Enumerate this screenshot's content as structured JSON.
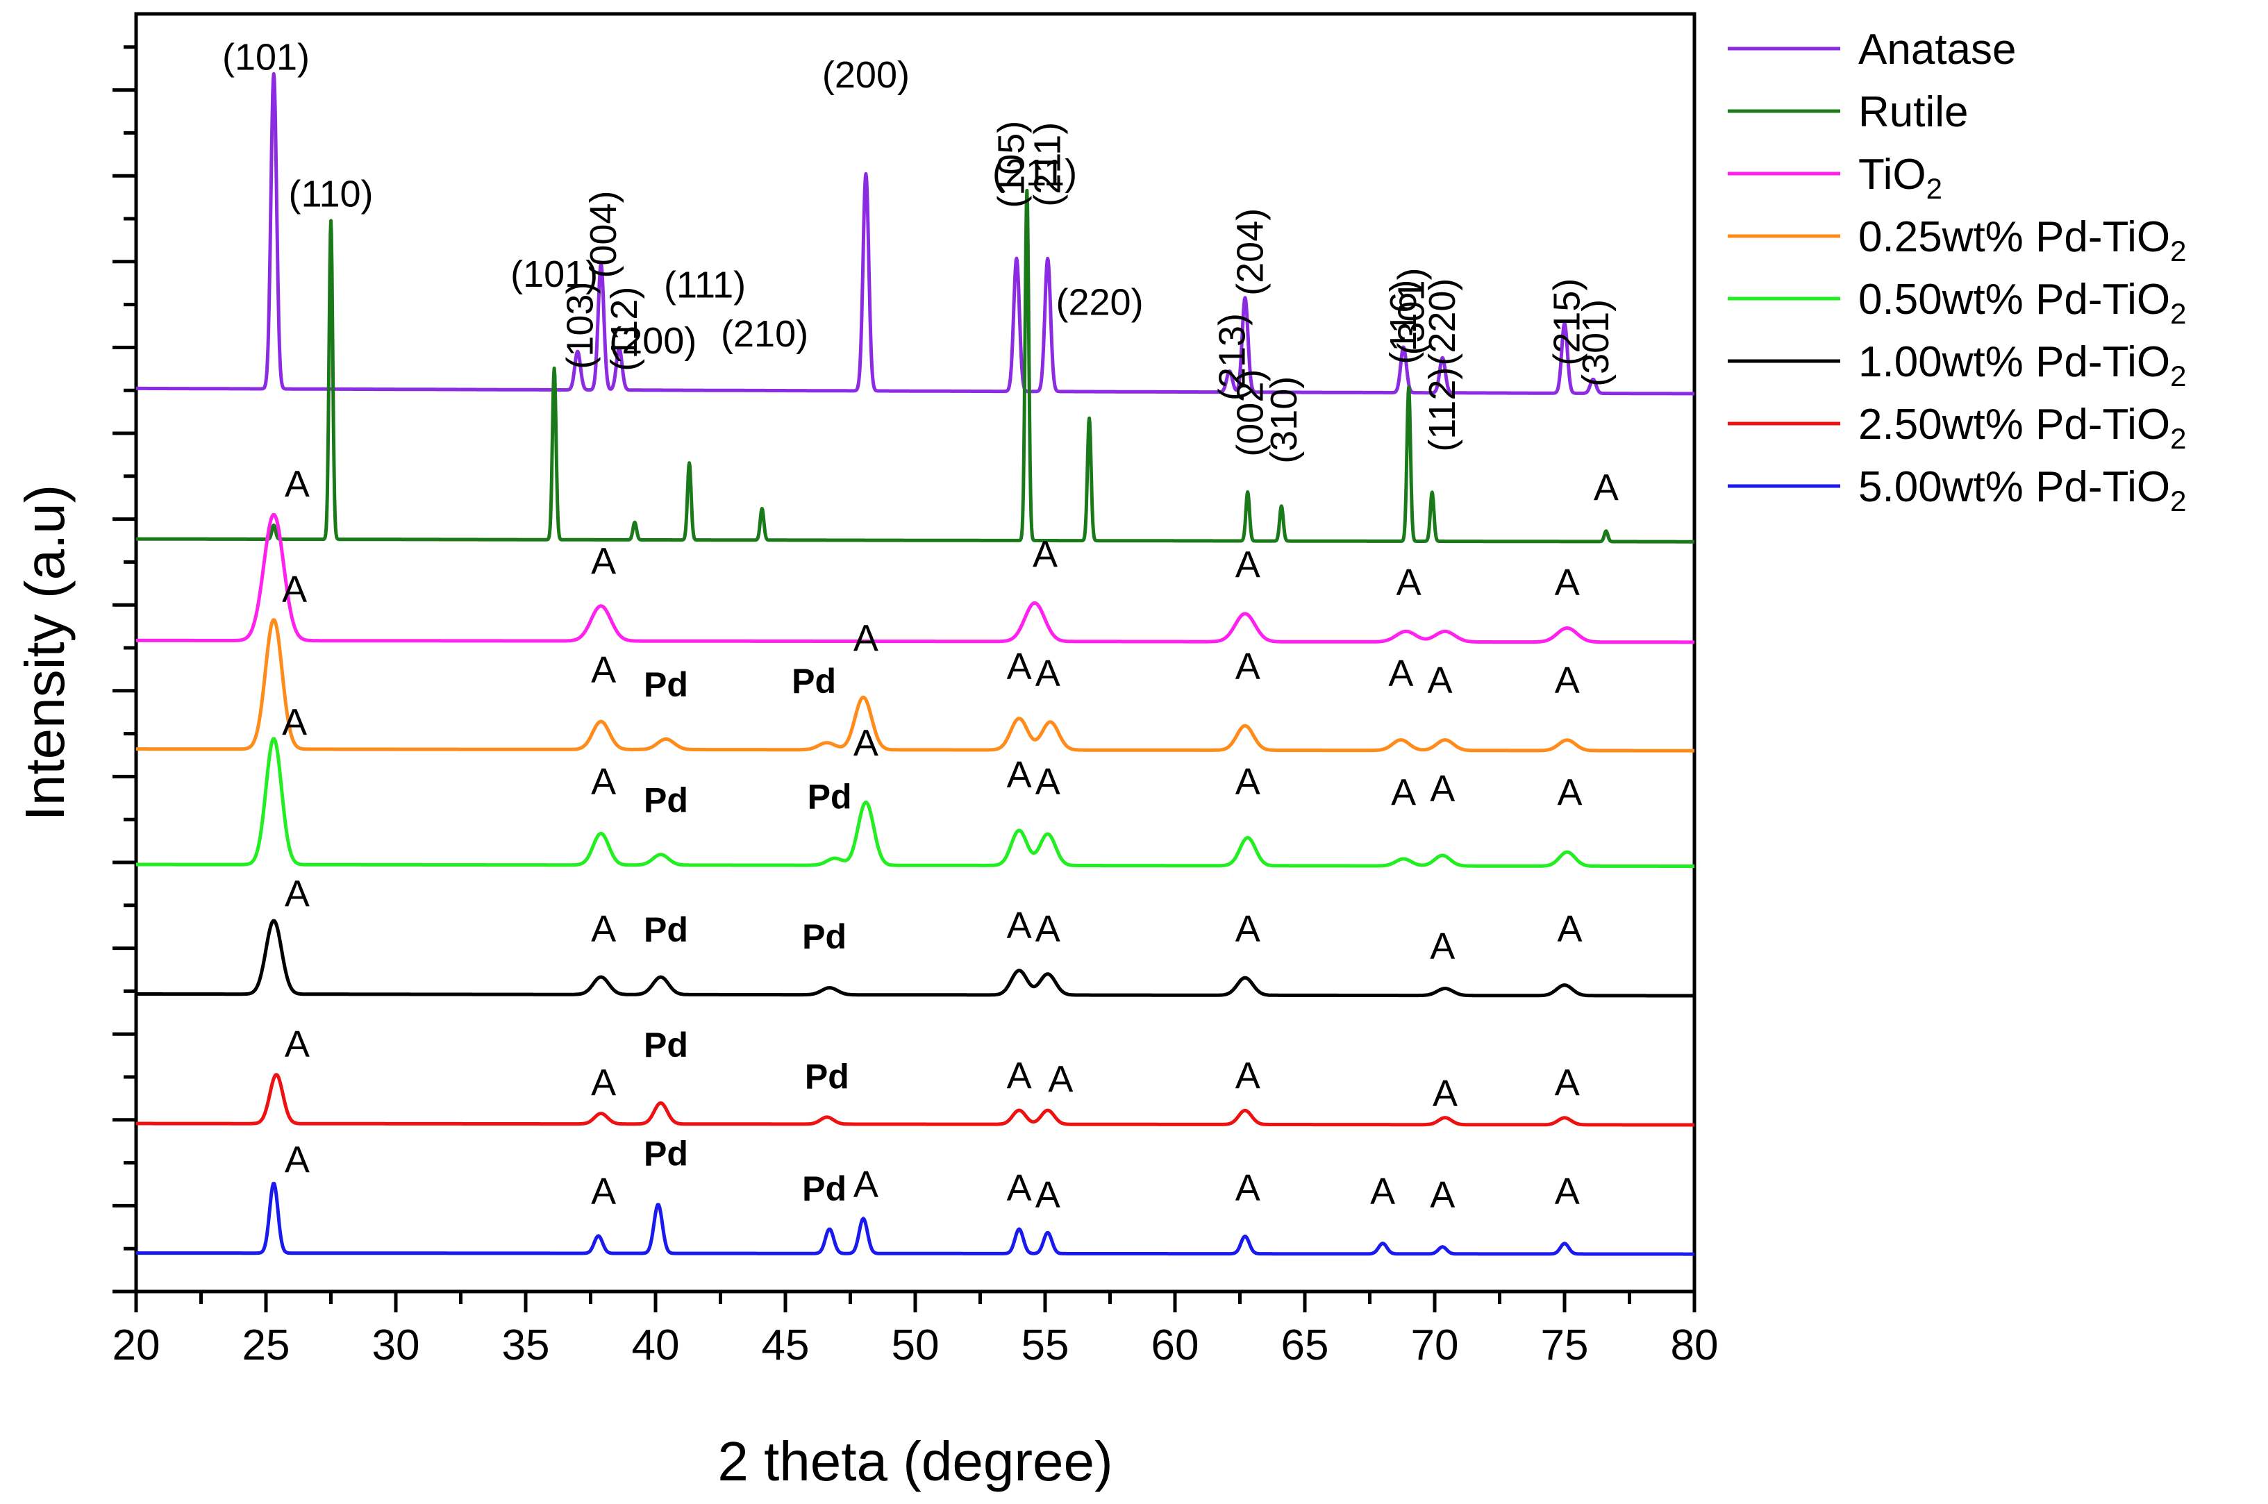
{
  "chart_data": {
    "type": "line",
    "title": "",
    "xlabel": "2 theta (degree)",
    "ylabel": "Intensity (a.u)",
    "xlim": [
      20,
      80
    ],
    "xticks": [
      "20",
      "25",
      "30",
      "35",
      "40",
      "45",
      "50",
      "55",
      "60",
      "65",
      "70",
      "75",
      "80"
    ],
    "series": [
      {
        "name": "Anatase",
        "legend": "Anatase",
        "legend_sub": "",
        "legend_tail": "",
        "color": "#8B2BE2",
        "baseline": 9.3,
        "sigma": 0.11,
        "slope": -0.15,
        "peaks": [
          [
            25.3,
            9.0
          ],
          [
            37.0,
            1.1
          ],
          [
            37.9,
            3.6
          ],
          [
            38.6,
            1.2
          ],
          [
            48.1,
            6.2
          ],
          [
            53.9,
            3.8
          ],
          [
            55.1,
            3.8
          ],
          [
            62.1,
            0.6
          ],
          [
            62.7,
            2.7
          ],
          [
            68.8,
            1.3
          ],
          [
            70.3,
            1.0
          ],
          [
            75.0,
            2.0
          ],
          [
            76.1,
            0.4
          ]
        ],
        "labels": [
          {
            "text": "(101)",
            "x": 25.0,
            "y": 18.4,
            "rot": 0,
            "bold": false
          },
          {
            "text": "(103)",
            "x": 37.1,
            "y": 11.1,
            "rot": -90,
            "bold": false
          },
          {
            "text": "(004)",
            "x": 38.0,
            "y": 13.7,
            "rot": -90,
            "bold": false
          },
          {
            "text": "(112)",
            "x": 38.8,
            "y": 11.0,
            "rot": -90,
            "bold": false
          },
          {
            "text": "(200)",
            "x": 48.1,
            "y": 17.9,
            "rot": 0,
            "bold": false
          },
          {
            "text": "(105)",
            "x": 53.7,
            "y": 15.7,
            "rot": -90,
            "bold": false
          },
          {
            "text": "(211)",
            "x": 55.1,
            "y": 15.7,
            "rot": -90,
            "bold": false
          },
          {
            "text": "(213)",
            "x": 62.2,
            "y": 10.2,
            "rot": -90,
            "bold": false
          },
          {
            "text": "(204)",
            "x": 62.9,
            "y": 13.2,
            "rot": -90,
            "bold": false
          },
          {
            "text": "(116)",
            "x": 68.8,
            "y": 11.2,
            "rot": -90,
            "bold": false
          },
          {
            "text": "(220)",
            "x": 70.3,
            "y": 11.2,
            "rot": -90,
            "bold": false
          },
          {
            "text": "(215)",
            "x": 75.1,
            "y": 11.2,
            "rot": -90,
            "bold": false
          },
          {
            "text": "(301)",
            "x": 76.2,
            "y": 10.6,
            "rot": -90,
            "bold": false
          }
        ]
      },
      {
        "name": "Rutile",
        "legend": "Rutile",
        "legend_sub": "",
        "legend_tail": "",
        "color": "#1A7A1A",
        "baseline": 5.0,
        "sigma": 0.07,
        "slope": -0.08,
        "peaks": [
          [
            25.3,
            0.4
          ],
          [
            27.5,
            9.1
          ],
          [
            36.1,
            4.9
          ],
          [
            39.2,
            0.5
          ],
          [
            41.3,
            2.2
          ],
          [
            44.1,
            0.9
          ],
          [
            54.3,
            10.0
          ],
          [
            56.7,
            3.5
          ],
          [
            62.8,
            1.4
          ],
          [
            64.1,
            1.0
          ],
          [
            69.0,
            4.4
          ],
          [
            69.9,
            1.4
          ],
          [
            76.6,
            0.3
          ]
        ],
        "labels": [
          {
            "text": "(110)",
            "x": 27.5,
            "y": 14.5,
            "rot": 0,
            "bold": false
          },
          {
            "text": "(101)",
            "x": 36.1,
            "y": 12.2,
            "rot": 0,
            "bold": false
          },
          {
            "text": "(200)",
            "x": 39.9,
            "y": 10.3,
            "rot": 0,
            "bold": false
          },
          {
            "text": "(111)",
            "x": 41.9,
            "y": 11.9,
            "rot": 0,
            "bold": false
          },
          {
            "text": "(210)",
            "x": 44.2,
            "y": 10.5,
            "rot": 0,
            "bold": false
          },
          {
            "text": "(211)",
            "x": 54.6,
            "y": 15.1,
            "rot": 0,
            "bold": false
          },
          {
            "text": "(220)",
            "x": 57.1,
            "y": 11.4,
            "rot": 0,
            "bold": false
          },
          {
            "text": "(002)",
            "x": 62.9,
            "y": 8.6,
            "rot": -90,
            "bold": false
          },
          {
            "text": "(310)",
            "x": 64.2,
            "y": 8.4,
            "rot": -90,
            "bold": false
          },
          {
            "text": "(301)",
            "x": 69.1,
            "y": 11.5,
            "rot": -90,
            "bold": false
          },
          {
            "text": "(112)",
            "x": 70.3,
            "y": 8.7,
            "rot": -90,
            "bold": false
          },
          {
            "text": "A",
            "x": 76.6,
            "y": 6.1,
            "rot": 0,
            "bold": false
          }
        ]
      },
      {
        "name": "TiO2",
        "legend": "TiO",
        "legend_sub": "2",
        "legend_tail": "",
        "color": "#FF22EE",
        "baseline": 2.1,
        "sigma": 0.38,
        "slope": -0.05,
        "peaks": [
          [
            25.3,
            3.6
          ],
          [
            37.9,
            1.0
          ],
          [
            54.6,
            1.1
          ],
          [
            62.7,
            0.8
          ],
          [
            68.9,
            0.3
          ],
          [
            70.4,
            0.3
          ],
          [
            75.1,
            0.4
          ]
        ],
        "labels": [
          {
            "text": "A",
            "x": 26.2,
            "y": 6.2,
            "rot": 0,
            "bold": false
          },
          {
            "text": "A",
            "x": 38.0,
            "y": 4.0,
            "rot": 0,
            "bold": false
          },
          {
            "text": "A",
            "x": 55.0,
            "y": 4.2,
            "rot": 0,
            "bold": false
          },
          {
            "text": "A",
            "x": 62.8,
            "y": 3.9,
            "rot": 0,
            "bold": false
          },
          {
            "text": "A",
            "x": 69.0,
            "y": 3.4,
            "rot": 0,
            "bold": false
          },
          {
            "text": "A",
            "x": 75.1,
            "y": 3.4,
            "rot": 0,
            "bold": false
          }
        ]
      },
      {
        "name": "0.25wt% Pd-TiO2",
        "legend": "0.25wt% Pd-TiO",
        "legend_sub": "2",
        "legend_tail": "",
        "color": "#FF8C1A",
        "baseline": -1.0,
        "sigma": 0.32,
        "slope": -0.05,
        "peaks": [
          [
            25.3,
            3.7
          ],
          [
            37.9,
            0.8
          ],
          [
            40.4,
            0.3
          ],
          [
            46.6,
            0.2
          ],
          [
            48.0,
            1.5
          ],
          [
            54.0,
            0.9
          ],
          [
            55.2,
            0.8
          ],
          [
            62.7,
            0.7
          ],
          [
            68.7,
            0.3
          ],
          [
            70.4,
            0.3
          ],
          [
            75.1,
            0.3
          ]
        ],
        "labels": [
          {
            "text": "A",
            "x": 26.1,
            "y": 3.2,
            "rot": 0,
            "bold": false
          },
          {
            "text": "A",
            "x": 38.0,
            "y": 0.9,
            "rot": 0,
            "bold": false
          },
          {
            "text": "Pd",
            "x": 40.4,
            "y": 0.5,
            "rot": 0,
            "bold": true
          },
          {
            "text": "Pd",
            "x": 46.1,
            "y": 0.6,
            "rot": 0,
            "bold": true
          },
          {
            "text": "A",
            "x": 48.1,
            "y": 1.8,
            "rot": 0,
            "bold": false
          },
          {
            "text": "A",
            "x": 54.0,
            "y": 1.0,
            "rot": 0,
            "bold": false
          },
          {
            "text": "A",
            "x": 55.1,
            "y": 0.8,
            "rot": 0,
            "bold": false
          },
          {
            "text": "A",
            "x": 62.8,
            "y": 1.0,
            "rot": 0,
            "bold": false
          },
          {
            "text": "A",
            "x": 68.7,
            "y": 0.8,
            "rot": 0,
            "bold": false
          },
          {
            "text": "A",
            "x": 70.2,
            "y": 0.6,
            "rot": 0,
            "bold": false
          },
          {
            "text": "A",
            "x": 75.1,
            "y": 0.6,
            "rot": 0,
            "bold": false
          }
        ]
      },
      {
        "name": "0.50wt% Pd-TiO2",
        "legend": "0.50wt% Pd-TiO",
        "legend_sub": "2",
        "legend_tail": "",
        "color": "#22EE22",
        "baseline": -4.3,
        "sigma": 0.3,
        "slope": -0.05,
        "peaks": [
          [
            25.3,
            3.6
          ],
          [
            37.9,
            0.9
          ],
          [
            40.2,
            0.3
          ],
          [
            46.9,
            0.2
          ],
          [
            48.1,
            1.8
          ],
          [
            54.0,
            1.0
          ],
          [
            55.1,
            0.9
          ],
          [
            62.8,
            0.8
          ],
          [
            68.8,
            0.2
          ],
          [
            70.3,
            0.3
          ],
          [
            75.1,
            0.4
          ]
        ],
        "labels": [
          {
            "text": "A",
            "x": 26.1,
            "y": -0.6,
            "rot": 0,
            "bold": false
          },
          {
            "text": "A",
            "x": 38.0,
            "y": -2.3,
            "rot": 0,
            "bold": false
          },
          {
            "text": "Pd",
            "x": 40.4,
            "y": -2.8,
            "rot": 0,
            "bold": true
          },
          {
            "text": "Pd",
            "x": 46.7,
            "y": -2.7,
            "rot": 0,
            "bold": true
          },
          {
            "text": "A",
            "x": 48.1,
            "y": -1.2,
            "rot": 0,
            "bold": false
          },
          {
            "text": "A",
            "x": 54.0,
            "y": -2.1,
            "rot": 0,
            "bold": false
          },
          {
            "text": "A",
            "x": 55.1,
            "y": -2.3,
            "rot": 0,
            "bold": false
          },
          {
            "text": "A",
            "x": 62.8,
            "y": -2.3,
            "rot": 0,
            "bold": false
          },
          {
            "text": "A",
            "x": 68.8,
            "y": -2.6,
            "rot": 0,
            "bold": false
          },
          {
            "text": "A",
            "x": 70.3,
            "y": -2.5,
            "rot": 0,
            "bold": false
          },
          {
            "text": "A",
            "x": 75.2,
            "y": -2.6,
            "rot": 0,
            "bold": false
          }
        ]
      },
      {
        "name": "1.00wt% Pd-TiO2",
        "legend": "1.00wt% Pd-TiO",
        "legend_sub": "2",
        "legend_tail": "",
        "color": "#000000",
        "baseline": -8.0,
        "sigma": 0.3,
        "slope": -0.05,
        "peaks": [
          [
            25.3,
            2.1
          ],
          [
            37.9,
            0.5
          ],
          [
            40.2,
            0.5
          ],
          [
            46.7,
            0.2
          ],
          [
            54.0,
            0.7
          ],
          [
            55.1,
            0.6
          ],
          [
            62.7,
            0.5
          ],
          [
            70.4,
            0.2
          ],
          [
            75.0,
            0.3
          ]
        ],
        "labels": [
          {
            "text": "A",
            "x": 26.2,
            "y": -5.5,
            "rot": 0,
            "bold": false
          },
          {
            "text": "A",
            "x": 38.0,
            "y": -6.5,
            "rot": 0,
            "bold": false
          },
          {
            "text": "Pd",
            "x": 40.4,
            "y": -6.5,
            "rot": 0,
            "bold": true
          },
          {
            "text": "Pd",
            "x": 46.5,
            "y": -6.7,
            "rot": 0,
            "bold": true
          },
          {
            "text": "A",
            "x": 54.0,
            "y": -6.4,
            "rot": 0,
            "bold": false
          },
          {
            "text": "A",
            "x": 55.1,
            "y": -6.5,
            "rot": 0,
            "bold": false
          },
          {
            "text": "A",
            "x": 62.8,
            "y": -6.5,
            "rot": 0,
            "bold": false
          },
          {
            "text": "A",
            "x": 70.3,
            "y": -7.0,
            "rot": 0,
            "bold": false
          },
          {
            "text": "A",
            "x": 75.2,
            "y": -6.5,
            "rot": 0,
            "bold": false
          }
        ]
      },
      {
        "name": "2.50wt% Pd-TiO2",
        "legend": "2.50wt% Pd-TiO",
        "legend_sub": "2",
        "legend_tail": "",
        "color": "#EE1111",
        "baseline": -11.7,
        "sigma": 0.25,
        "slope": -0.04,
        "peaks": [
          [
            25.4,
            1.4
          ],
          [
            37.9,
            0.3
          ],
          [
            40.2,
            0.6
          ],
          [
            46.6,
            0.2
          ],
          [
            54.0,
            0.4
          ],
          [
            55.1,
            0.4
          ],
          [
            62.7,
            0.4
          ],
          [
            70.4,
            0.2
          ],
          [
            75.0,
            0.2
          ]
        ],
        "labels": [
          {
            "text": "A",
            "x": 26.2,
            "y": -9.8,
            "rot": 0,
            "bold": false
          },
          {
            "text": "A",
            "x": 38.0,
            "y": -10.9,
            "rot": 0,
            "bold": false
          },
          {
            "text": "Pd",
            "x": 40.4,
            "y": -9.8,
            "rot": 0,
            "bold": true
          },
          {
            "text": "Pd",
            "x": 46.6,
            "y": -10.7,
            "rot": 0,
            "bold": true
          },
          {
            "text": "A",
            "x": 54.0,
            "y": -10.7,
            "rot": 0,
            "bold": false
          },
          {
            "text": "A",
            "x": 55.6,
            "y": -10.8,
            "rot": 0,
            "bold": false
          },
          {
            "text": "A",
            "x": 62.8,
            "y": -10.7,
            "rot": 0,
            "bold": false
          },
          {
            "text": "A",
            "x": 70.4,
            "y": -11.2,
            "rot": 0,
            "bold": false
          },
          {
            "text": "A",
            "x": 75.1,
            "y": -10.9,
            "rot": 0,
            "bold": false
          }
        ]
      },
      {
        "name": "5.00wt% Pd-TiO2",
        "legend": "5.00wt% Pd-TiO",
        "legend_sub": "2",
        "legend_tail": "",
        "color": "#1A1AEE",
        "baseline": -15.4,
        "sigma": 0.16,
        "slope": -0.03,
        "peaks": [
          [
            25.3,
            2.0
          ],
          [
            37.8,
            0.5
          ],
          [
            40.1,
            1.4
          ],
          [
            46.7,
            0.7
          ],
          [
            48.0,
            1.0
          ],
          [
            54.0,
            0.7
          ],
          [
            55.1,
            0.6
          ],
          [
            62.7,
            0.5
          ],
          [
            68.0,
            0.3
          ],
          [
            70.3,
            0.2
          ],
          [
            75.0,
            0.3
          ]
        ],
        "labels": [
          {
            "text": "A",
            "x": 26.2,
            "y": -13.1,
            "rot": 0,
            "bold": false
          },
          {
            "text": "A",
            "x": 38.0,
            "y": -14.0,
            "rot": 0,
            "bold": false
          },
          {
            "text": "Pd",
            "x": 40.4,
            "y": -12.9,
            "rot": 0,
            "bold": true
          },
          {
            "text": "Pd",
            "x": 46.5,
            "y": -13.9,
            "rot": 0,
            "bold": true
          },
          {
            "text": "A",
            "x": 48.1,
            "y": -13.8,
            "rot": 0,
            "bold": false
          },
          {
            "text": "A",
            "x": 54.0,
            "y": -13.9,
            "rot": 0,
            "bold": false
          },
          {
            "text": "A",
            "x": 55.1,
            "y": -14.1,
            "rot": 0,
            "bold": false
          },
          {
            "text": "A",
            "x": 62.8,
            "y": -13.9,
            "rot": 0,
            "bold": false
          },
          {
            "text": "A",
            "x": 68.0,
            "y": -14.0,
            "rot": 0,
            "bold": false
          },
          {
            "text": "A",
            "x": 70.3,
            "y": -14.1,
            "rot": 0,
            "bold": false
          },
          {
            "text": "A",
            "x": 75.1,
            "y": -14.0,
            "rot": 0,
            "bold": false
          }
        ]
      }
    ],
    "ylim": [
      -16.5,
      20
    ],
    "legend_position": "right"
  }
}
